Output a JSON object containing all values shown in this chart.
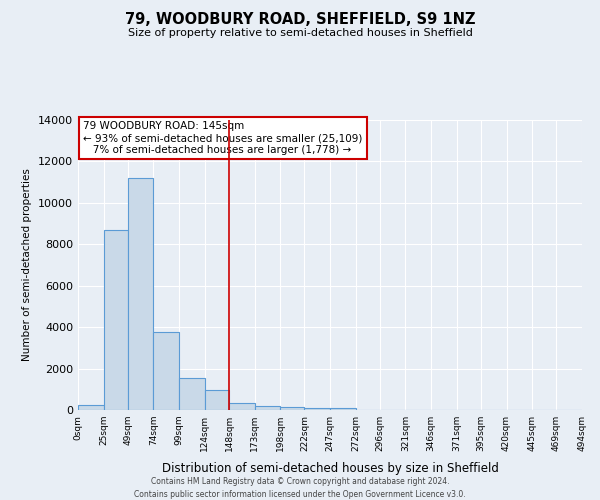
{
  "title": "79, WOODBURY ROAD, SHEFFIELD, S9 1NZ",
  "subtitle": "Size of property relative to semi-detached houses in Sheffield",
  "xlabel": "Distribution of semi-detached houses by size in Sheffield",
  "ylabel": "Number of semi-detached properties",
  "bar_color": "#c9d9e8",
  "bar_edge_color": "#5b9bd5",
  "background_color": "#e8eef5",
  "grid_color": "white",
  "annotation_box_color": "#cc0000",
  "annotation_text": "79 WOODBURY ROAD: 145sqm\n← 93% of semi-detached houses are smaller (25,109)\n   7% of semi-detached houses are larger (1,778) →",
  "property_line_color": "#cc0000",
  "property_line_x": 148,
  "bin_edges": [
    0,
    25,
    49,
    74,
    99,
    124,
    148,
    173,
    198,
    222,
    247,
    272,
    296,
    321,
    346,
    371,
    395,
    420,
    445,
    469,
    494
  ],
  "bar_heights": [
    250,
    8700,
    11200,
    3750,
    1550,
    950,
    350,
    200,
    125,
    100,
    100,
    0,
    0,
    0,
    0,
    0,
    0,
    0,
    0,
    0
  ],
  "ylim": [
    0,
    14000
  ],
  "tick_labels": [
    "0sqm",
    "25sqm",
    "49sqm",
    "74sqm",
    "99sqm",
    "124sqm",
    "148sqm",
    "173sqm",
    "198sqm",
    "222sqm",
    "247sqm",
    "272sqm",
    "296sqm",
    "321sqm",
    "346sqm",
    "371sqm",
    "395sqm",
    "420sqm",
    "445sqm",
    "469sqm",
    "494sqm"
  ],
  "footer_line1": "Contains HM Land Registry data © Crown copyright and database right 2024.",
  "footer_line2": "Contains public sector information licensed under the Open Government Licence v3.0."
}
